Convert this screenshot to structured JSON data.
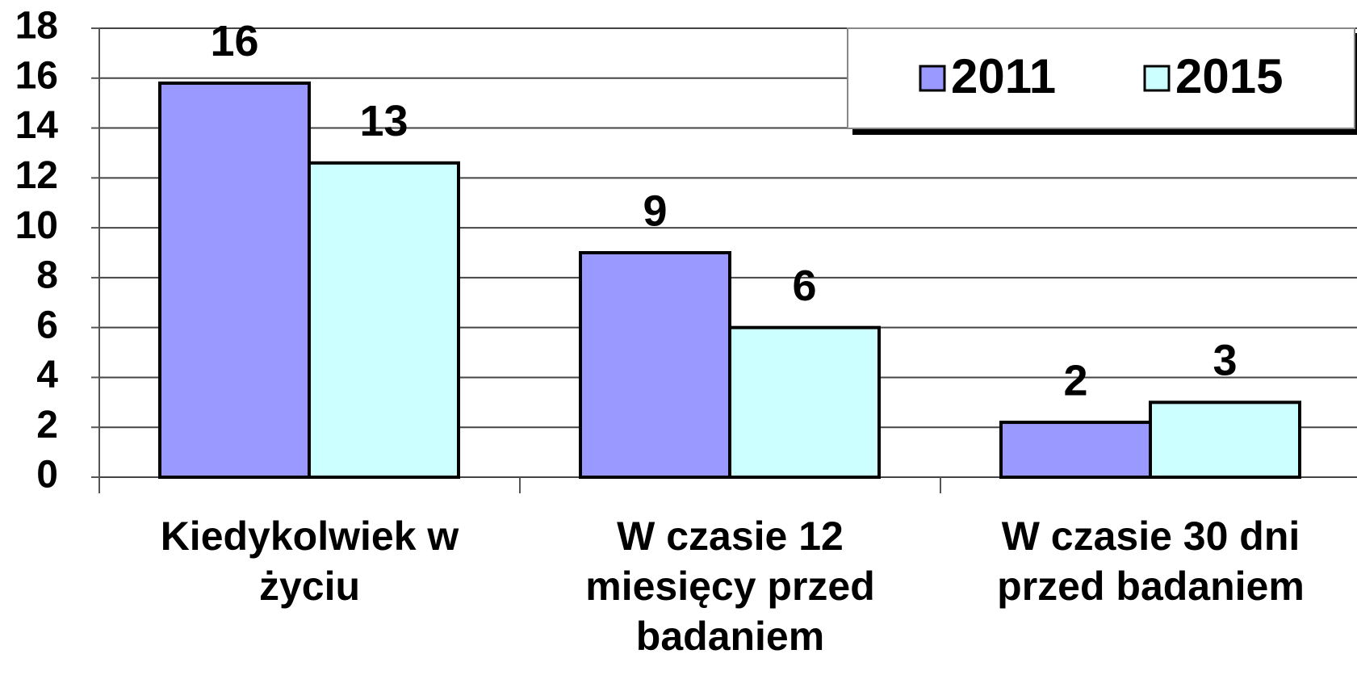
{
  "chart_data": {
    "type": "bar",
    "categories": [
      "Kiedykolwiek w życiu",
      "W czasie 12 miesięcy przed badaniem",
      "W czasie 30 dni przed badaniem"
    ],
    "series": [
      {
        "name": "2011",
        "color": "#9999ff",
        "values": [
          15.8,
          9,
          2.2
        ],
        "value_labels": [
          "16",
          "9",
          "2"
        ]
      },
      {
        "name": "2015",
        "color": "#ccffff",
        "values": [
          12.6,
          6,
          3
        ],
        "value_labels": [
          "13",
          "6",
          "3"
        ]
      }
    ],
    "ylim": [
      0,
      18
    ],
    "yticks": [
      0,
      2,
      4,
      6,
      8,
      10,
      12,
      14,
      16,
      18
    ],
    "grid": true,
    "legend": "top-right"
  }
}
